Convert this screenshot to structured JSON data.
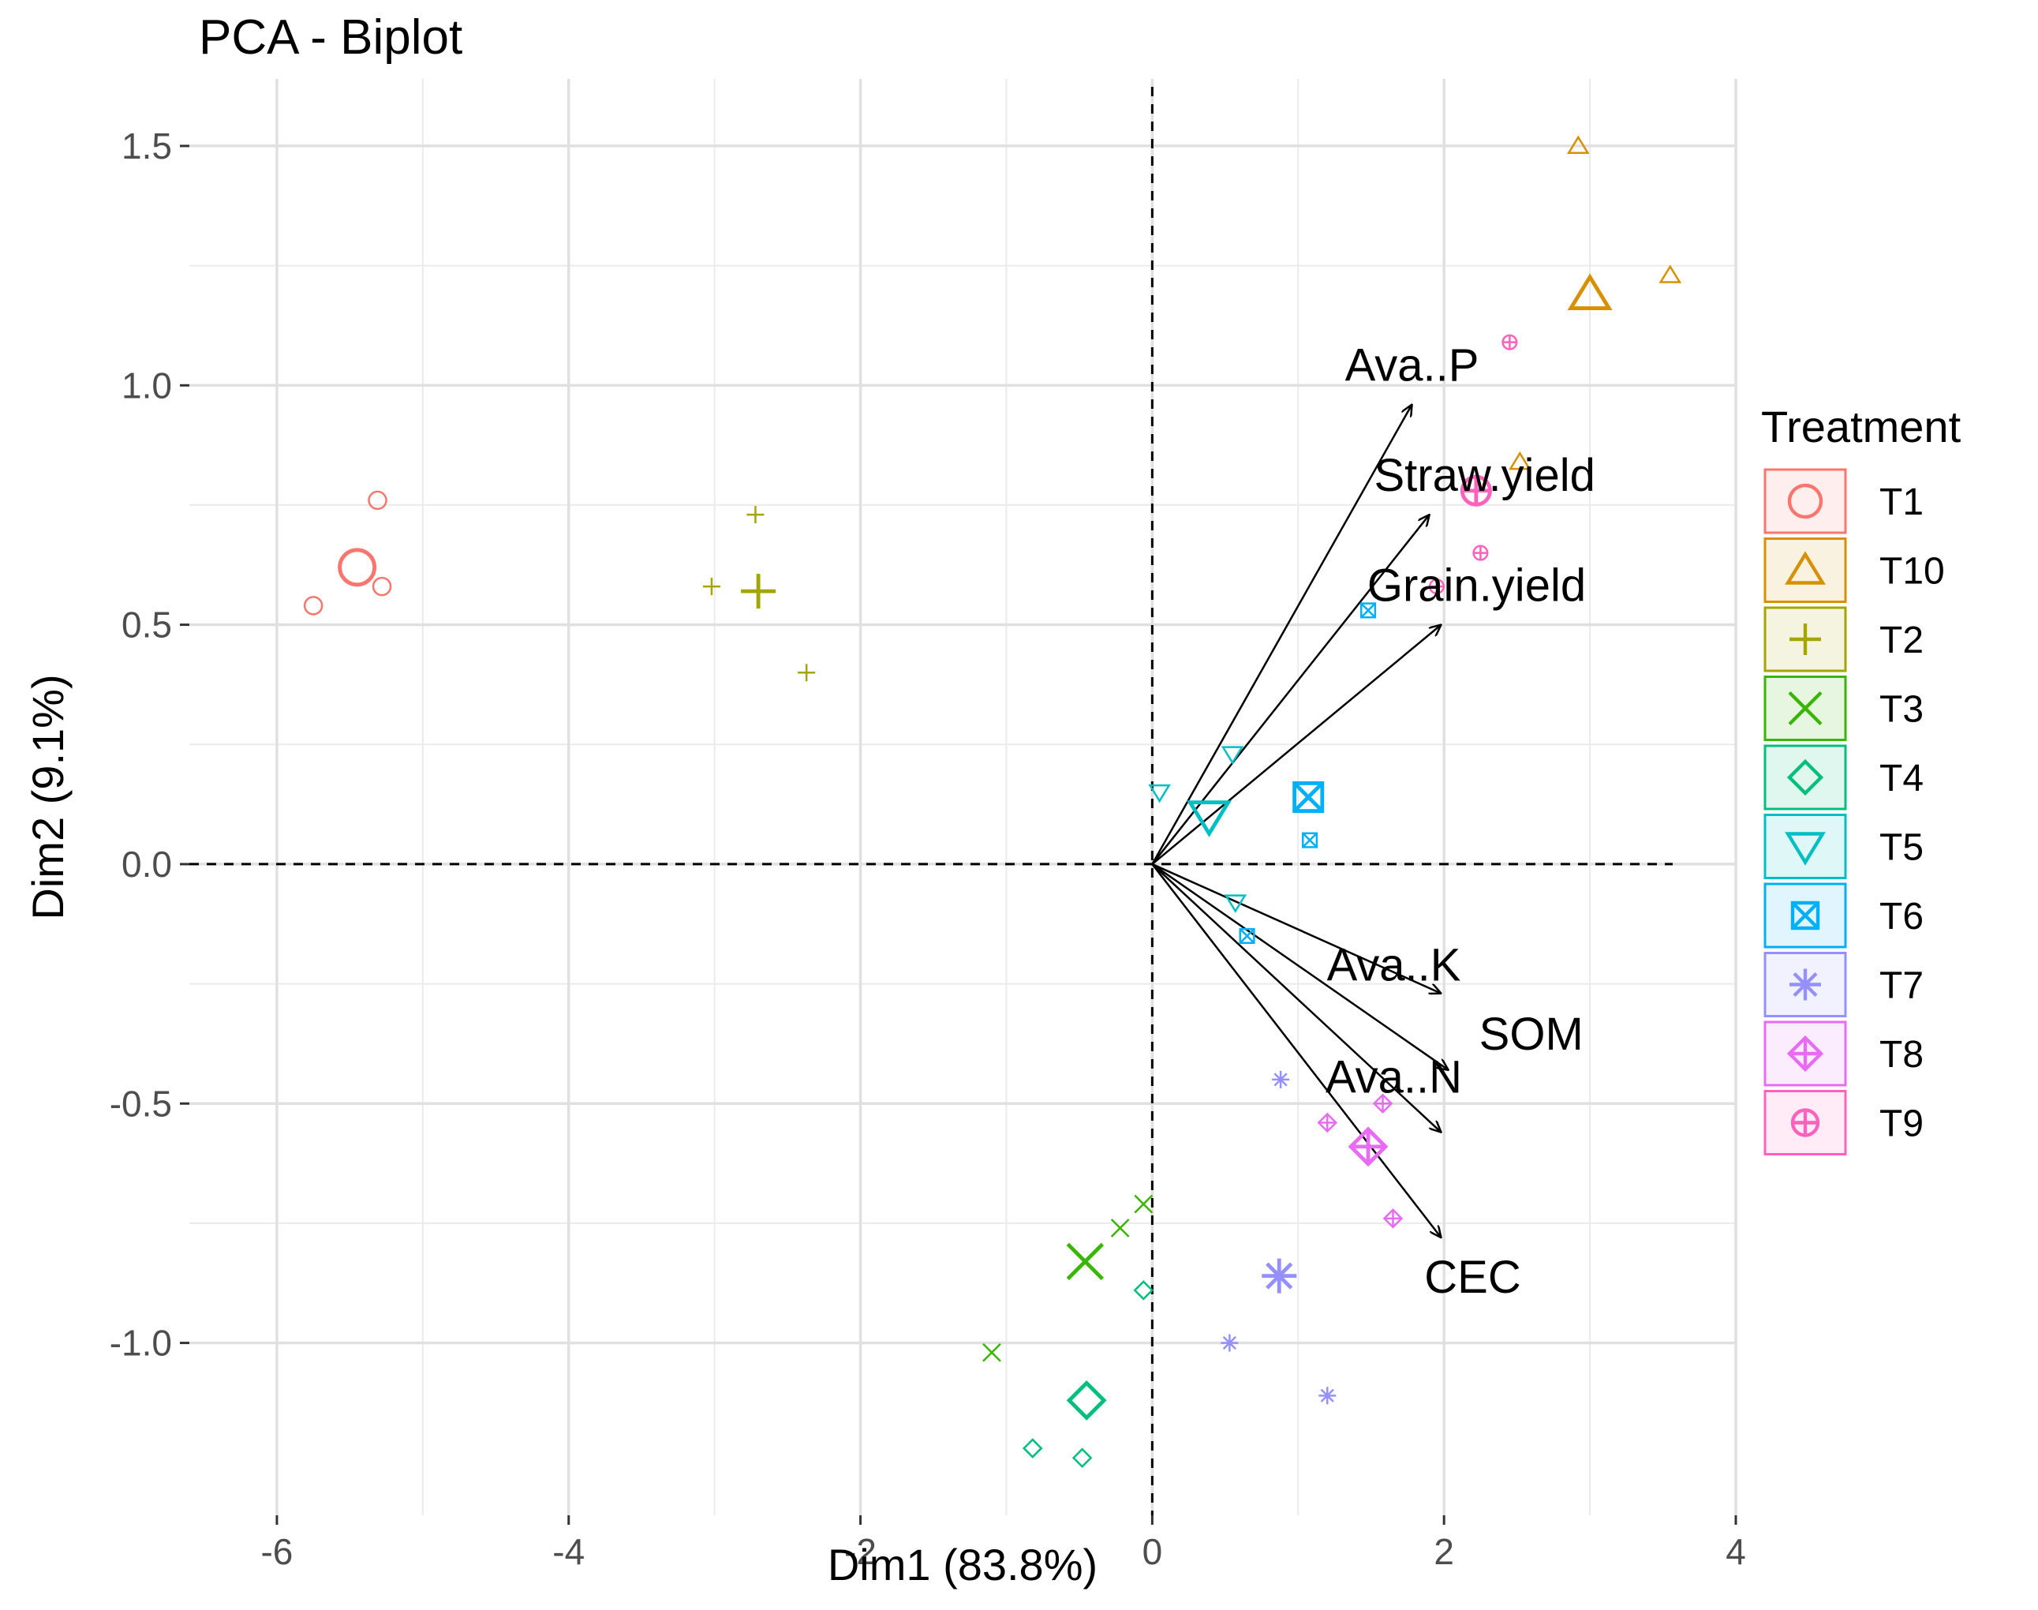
{
  "chart_data": {
    "type": "scatter",
    "subtype": "pca-biplot",
    "title": "PCA - Biplot",
    "xlabel": "Dim1 (83.8%)",
    "ylabel": "Dim2 (9.1%)",
    "xlim": [
      -6.6,
      4.0
    ],
    "ylim": [
      -1.36,
      1.64
    ],
    "x_ticks": [
      -6,
      -4,
      -2,
      0,
      2,
      4
    ],
    "x_tick_labels": [
      "-6",
      "-4",
      "-2",
      "0",
      "2",
      "4"
    ],
    "y_ticks": [
      -1.0,
      -0.5,
      0.0,
      0.5,
      1.0,
      1.5
    ],
    "y_tick_labels": [
      "-1.0",
      "-0.5",
      "0.0",
      "0.5",
      "1.0",
      "1.5"
    ],
    "grid": true,
    "legend": {
      "title": "Treatment",
      "placement": "right",
      "entries": [
        "T1",
        "T10",
        "T2",
        "T3",
        "T4",
        "T5",
        "T6",
        "T7",
        "T8",
        "T9"
      ]
    },
    "series": [
      {
        "name": "T1",
        "color": "#F8766D",
        "shape": "circle",
        "points": [
          [
            -5.31,
            0.76
          ],
          [
            -5.75,
            0.54
          ],
          [
            -5.28,
            0.58
          ]
        ],
        "centroid": [
          -5.45,
          0.62
        ]
      },
      {
        "name": "T10",
        "color": "#D89000",
        "shape": "triangle-up",
        "points": [
          [
            2.92,
            1.5
          ],
          [
            3.55,
            1.23
          ],
          [
            2.52,
            0.84
          ]
        ],
        "centroid": [
          3.0,
          1.19
        ]
      },
      {
        "name": "T2",
        "color": "#A3A500",
        "shape": "plus",
        "points": [
          [
            -2.72,
            0.73
          ],
          [
            -3.02,
            0.58
          ],
          [
            -2.37,
            0.4
          ]
        ],
        "centroid": [
          -2.7,
          0.57
        ]
      },
      {
        "name": "T3",
        "color": "#39B600",
        "shape": "cross",
        "points": [
          [
            -0.06,
            -0.71
          ],
          [
            -0.22,
            -0.76
          ],
          [
            -1.1,
            -1.02
          ]
        ],
        "centroid": [
          -0.46,
          -0.83
        ]
      },
      {
        "name": "T4",
        "color": "#00BF7D",
        "shape": "diamond",
        "points": [
          [
            -0.06,
            -0.89
          ],
          [
            -0.82,
            -1.22
          ],
          [
            -0.48,
            -1.24
          ]
        ],
        "centroid": [
          -0.45,
          -1.12
        ]
      },
      {
        "name": "T5",
        "color": "#00BFC4",
        "shape": "triangle-down",
        "points": [
          [
            0.05,
            0.15
          ],
          [
            0.55,
            0.23
          ],
          [
            0.57,
            -0.08
          ]
        ],
        "centroid": [
          0.39,
          0.1
        ]
      },
      {
        "name": "T6",
        "color": "#00B0F6",
        "shape": "square",
        "points": [
          [
            1.08,
            0.05
          ],
          [
            1.48,
            0.53
          ],
          [
            0.65,
            -0.15
          ]
        ],
        "centroid": [
          1.07,
          0.14
        ]
      },
      {
        "name": "T7",
        "color": "#9590FF",
        "shape": "asterisk",
        "points": [
          [
            0.88,
            -0.45
          ],
          [
            0.53,
            -1.0
          ],
          [
            1.2,
            -1.11
          ]
        ],
        "centroid": [
          0.87,
          -0.86
        ]
      },
      {
        "name": "T8",
        "color": "#E76BF3",
        "shape": "diamond-plus",
        "points": [
          [
            1.2,
            -0.54
          ],
          [
            1.58,
            -0.5
          ],
          [
            1.65,
            -0.74
          ]
        ],
        "centroid": [
          1.48,
          -0.59
        ]
      },
      {
        "name": "T9",
        "color": "#FF62BC",
        "shape": "circle-plus",
        "points": [
          [
            2.45,
            1.09
          ],
          [
            2.25,
            0.65
          ],
          [
            1.95,
            0.58
          ]
        ],
        "centroid": [
          2.22,
          0.78
        ]
      }
    ],
    "variables": [
      {
        "name": "Ava..P",
        "x": 1.78,
        "y": 0.96
      },
      {
        "name": "Straw.yield",
        "x": 1.9,
        "y": 0.73
      },
      {
        "name": "Grain.yield",
        "x": 1.98,
        "y": 0.5
      },
      {
        "name": "Ava..K",
        "x": 1.98,
        "y": -0.27
      },
      {
        "name": "SOM",
        "x": 2.03,
        "y": -0.43
      },
      {
        "name": "Ava..N",
        "x": 1.98,
        "y": -0.56
      },
      {
        "name": "CEC",
        "x": 1.98,
        "y": -0.78
      }
    ],
    "reference_lines": {
      "x": 0,
      "y": 0,
      "style": "dashed"
    }
  }
}
